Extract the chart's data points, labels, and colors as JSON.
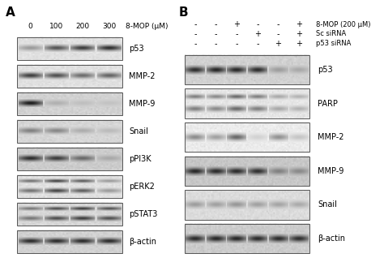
{
  "bg_color": "#ffffff",
  "font_size": 7,
  "label_font_size": 11,
  "panel_A": {
    "label": "A",
    "concentrations": [
      "0",
      "100",
      "200",
      "300"
    ],
    "header": "8-MOP (μM)",
    "rows": [
      {
        "name": "p53",
        "intensities": [
          0.35,
          0.7,
          0.82,
          0.88
        ],
        "bg": 0.88,
        "n_bands": 1
      },
      {
        "name": "MMP-2",
        "intensities": [
          0.8,
          0.72,
          0.58,
          0.62
        ],
        "bg": 0.88,
        "n_bands": 1
      },
      {
        "name": "MMP-9",
        "intensities": [
          0.97,
          0.18,
          0.1,
          0.08
        ],
        "bg": 0.82,
        "n_bands": 1
      },
      {
        "name": "Snail",
        "intensities": [
          0.45,
          0.42,
          0.22,
          0.15
        ],
        "bg": 0.84,
        "n_bands": 1
      },
      {
        "name": "pPI3K",
        "intensities": [
          0.88,
          0.8,
          0.55,
          0.2
        ],
        "bg": 0.8,
        "n_bands": 1
      },
      {
        "name": "pERK2",
        "intensities": [
          0.55,
          0.78,
          0.65,
          0.35
        ],
        "bg": 0.88,
        "n_bands": 2
      },
      {
        "name": "pSTAT3",
        "intensities": [
          0.5,
          0.72,
          0.8,
          0.7
        ],
        "bg": 0.84,
        "n_bands": 2
      },
      {
        "name": "β-actin",
        "intensities": [
          0.88,
          0.88,
          0.88,
          0.88
        ],
        "bg": 0.82,
        "n_bands": 1
      }
    ]
  },
  "panel_B": {
    "label": "B",
    "cond_8mop": [
      "-",
      "-",
      "+",
      "-",
      "-",
      "+"
    ],
    "cond_sc": [
      "-",
      "-",
      "-",
      "+",
      "-",
      "+"
    ],
    "cond_p53": [
      "-",
      "-",
      "-",
      "-",
      "+",
      "+"
    ],
    "header1": "8-MOP (200 μM)",
    "header2": "Sc siRNA",
    "header3": "p53 siRNA",
    "rows": [
      {
        "name": "p53",
        "intensities": [
          0.88,
          0.92,
          0.9,
          0.88,
          0.28,
          0.22
        ],
        "bg": 0.82,
        "n_bands": 1
      },
      {
        "name": "PARP",
        "intensities": [
          0.5,
          0.45,
          0.6,
          0.5,
          0.3,
          0.25
        ],
        "bg": 0.9,
        "n_bands": 2
      },
      {
        "name": "MMP-2",
        "intensities": [
          0.45,
          0.35,
          0.62,
          0.12,
          0.42,
          0.18
        ],
        "bg": 0.92,
        "n_bands": 1
      },
      {
        "name": "MMP-9",
        "intensities": [
          0.9,
          0.88,
          0.88,
          0.85,
          0.4,
          0.35
        ],
        "bg": 0.78,
        "n_bands": 1
      },
      {
        "name": "Snail",
        "intensities": [
          0.32,
          0.3,
          0.35,
          0.3,
          0.28,
          0.25
        ],
        "bg": 0.86,
        "n_bands": 1
      },
      {
        "name": "β-actin",
        "intensities": [
          0.88,
          0.9,
          0.9,
          0.88,
          0.88,
          0.86
        ],
        "bg": 0.8,
        "n_bands": 1
      }
    ]
  }
}
